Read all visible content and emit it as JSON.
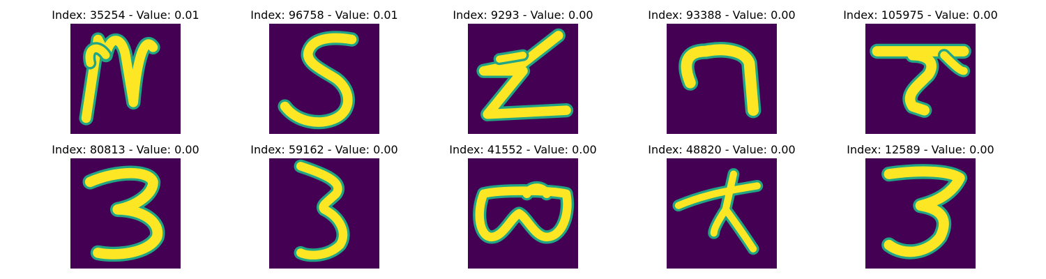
{
  "figure": {
    "background_color": "#440154",
    "stroke_color": "#fde725",
    "edge_color": "#21a585",
    "panels": [
      {
        "title": "Index: 35254 - Value: 0.01",
        "depicts": "handwritten-character"
      },
      {
        "title": "Index: 96758 - Value: 0.01",
        "depicts": "handwritten-digit-5"
      },
      {
        "title": "Index: 9293 - Value: 0.00",
        "depicts": "handwritten-character"
      },
      {
        "title": "Index: 93388 - Value: 0.00",
        "depicts": "handwritten-digit-7"
      },
      {
        "title": "Index: 105975 - Value: 0.00",
        "depicts": "handwritten-character"
      },
      {
        "title": "Index: 80813 - Value: 0.00",
        "depicts": "handwritten-digit-3"
      },
      {
        "title": "Index: 59162 - Value: 0.00",
        "depicts": "handwritten-digit-3"
      },
      {
        "title": "Index: 41552 - Value: 0.00",
        "depicts": "handwritten-character"
      },
      {
        "title": "Index: 48820 - Value: 0.00",
        "depicts": "handwritten-character"
      },
      {
        "title": "Index: 12589 - Value: 0.00",
        "depicts": "handwritten-digit-3"
      }
    ]
  }
}
